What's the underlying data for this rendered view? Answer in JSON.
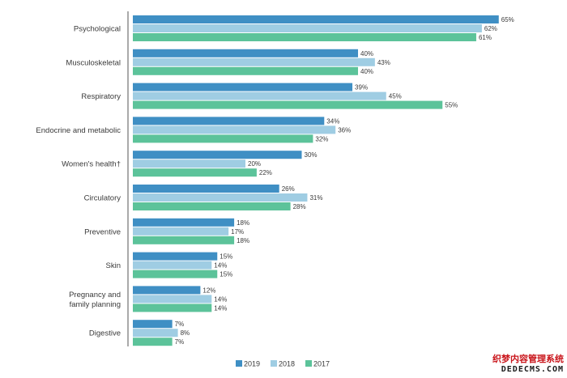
{
  "chart_data": {
    "type": "bar",
    "orientation": "horizontal",
    "categories": [
      "Psychological",
      "Musculoskeletal",
      "Respiratory",
      "Endocrine and metabolic",
      "Women's health†",
      "Circulatory",
      "Preventive",
      "Skin",
      "Pregnancy and family planning",
      "Digestive"
    ],
    "category_lines": [
      [
        "Psychological"
      ],
      [
        "Musculoskeletal"
      ],
      [
        "Respiratory"
      ],
      [
        "Endocrine and metabolic"
      ],
      [
        "Women's health†"
      ],
      [
        "Circulatory"
      ],
      [
        "Preventive"
      ],
      [
        "Skin"
      ],
      [
        "Pregnancy and",
        "family planning"
      ],
      [
        "Digestive"
      ]
    ],
    "series": [
      {
        "name": "2019",
        "color": "#3f8fc4",
        "values": [
          65,
          40,
          39,
          34,
          30,
          26,
          18,
          15,
          12,
          7
        ]
      },
      {
        "name": "2018",
        "color": "#9fcde3",
        "values": [
          62,
          43,
          45,
          36,
          20,
          31,
          17,
          14,
          14,
          8
        ]
      },
      {
        "name": "2017",
        "color": "#5cc39a",
        "values": [
          61,
          40,
          55,
          32,
          22,
          28,
          18,
          15,
          14,
          7
        ]
      }
    ],
    "value_suffix": "%",
    "xlim": [
      0,
      65
    ],
    "legend_position": "bottom",
    "grid": false
  },
  "watermark": {
    "line1": "织梦内容管理系统",
    "line2": "DEDECMS.COM"
  }
}
